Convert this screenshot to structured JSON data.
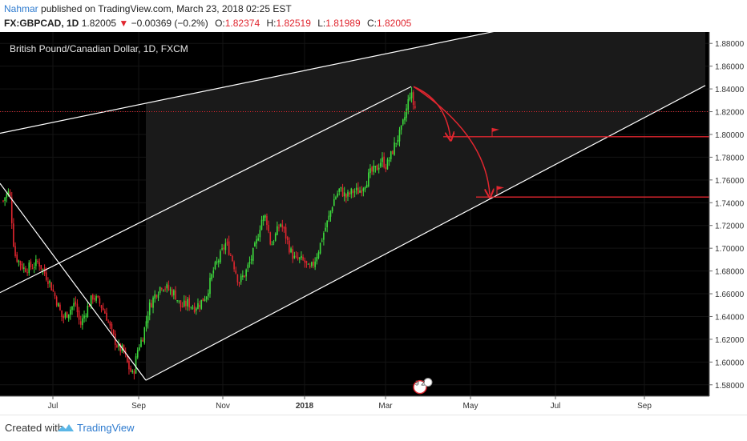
{
  "header": {
    "author": "Nahmar",
    "published_text": " published on TradingView.com, March 23, 2018 02:25 EST",
    "symbol": "FX:GBPCAD, 1D",
    "last": "1.82005",
    "change": "−0.00369 (−0.2%)",
    "o_label": "O:",
    "o_value": "1.82374",
    "h_label": "H:",
    "h_value": "1.82519",
    "l_label": "L:",
    "l_value": "1.81989",
    "c_label": "C:",
    "c_value": "1.82005",
    "down_arrow": "▼"
  },
  "footer": {
    "created_with": "Created with",
    "brand": "TradingView"
  },
  "colors": {
    "background": "#000000",
    "up_candle": "#3ddc3d",
    "down_candle": "#e0262f",
    "channel_line": "#ffffff",
    "price_line": "#e0262f",
    "axis_text": "#333333",
    "author": "#2e7bcf"
  },
  "chart_data": {
    "type": "candlestick",
    "title": "British Pound/Canadian Dollar, 1D, FXCM",
    "symbol": "GBPCAD",
    "ylim": [
      1.57,
      1.89
    ],
    "y_ticks": [
      "1.88000",
      "1.86000",
      "1.84000",
      "1.82000",
      "1.80000",
      "1.78000",
      "1.76000",
      "1.74000",
      "1.72000",
      "1.70000",
      "1.68000",
      "1.66000",
      "1.64000",
      "1.62000",
      "1.60000",
      "1.58000"
    ],
    "x_ticks": [
      "Jul",
      "Sep",
      "Nov",
      "2018",
      "Mar",
      "May",
      "Jul",
      "Sep"
    ],
    "price_labels": [
      {
        "value": 1.82005,
        "label": "1.82005",
        "style": "dotted"
      },
      {
        "value": 1.798,
        "label": "1.79800",
        "style": "solid"
      },
      {
        "value": 1.745,
        "label": "1.74500",
        "style": "solid"
      }
    ],
    "path_keypoints": [
      [
        0,
        1.735
      ],
      [
        6,
        1.745
      ],
      [
        12,
        1.75
      ],
      [
        18,
        1.695
      ],
      [
        24,
        1.688
      ],
      [
        30,
        1.682
      ],
      [
        40,
        1.684
      ],
      [
        48,
        1.688
      ],
      [
        55,
        1.679
      ],
      [
        62,
        1.67
      ],
      [
        70,
        1.655
      ],
      [
        78,
        1.638
      ],
      [
        86,
        1.645
      ],
      [
        94,
        1.652
      ],
      [
        100,
        1.632
      ],
      [
        108,
        1.646
      ],
      [
        116,
        1.658
      ],
      [
        124,
        1.652
      ],
      [
        132,
        1.642
      ],
      [
        140,
        1.624
      ],
      [
        148,
        1.612
      ],
      [
        154,
        1.61
      ],
      [
        160,
        1.596
      ],
      [
        166,
        1.588
      ],
      [
        172,
        1.612
      ],
      [
        178,
        1.622
      ],
      [
        186,
        1.648
      ],
      [
        194,
        1.66
      ],
      [
        202,
        1.668
      ],
      [
        210,
        1.664
      ],
      [
        218,
        1.66
      ],
      [
        226,
        1.648
      ],
      [
        234,
        1.652
      ],
      [
        242,
        1.648
      ],
      [
        250,
        1.652
      ],
      [
        258,
        1.66
      ],
      [
        266,
        1.68
      ],
      [
        274,
        1.692
      ],
      [
        282,
        1.705
      ],
      [
        290,
        1.69
      ],
      [
        298,
        1.67
      ],
      [
        306,
        1.678
      ],
      [
        314,
        1.692
      ],
      [
        320,
        1.705
      ],
      [
        326,
        1.725
      ],
      [
        332,
        1.728
      ],
      [
        338,
        1.702
      ],
      [
        344,
        1.712
      ],
      [
        350,
        1.722
      ],
      [
        356,
        1.712
      ],
      [
        362,
        1.698
      ],
      [
        368,
        1.69
      ],
      [
        374,
        1.69
      ],
      [
        380,
        1.688
      ],
      [
        386,
        1.68
      ],
      [
        392,
        1.688
      ],
      [
        398,
        1.7
      ],
      [
        404,
        1.714
      ],
      [
        410,
        1.726
      ],
      [
        416,
        1.742
      ],
      [
        424,
        1.752
      ],
      [
        432,
        1.745
      ],
      [
        440,
        1.75
      ],
      [
        448,
        1.75
      ],
      [
        456,
        1.758
      ],
      [
        462,
        1.766
      ],
      [
        470,
        1.77
      ],
      [
        476,
        1.778
      ],
      [
        482,
        1.772
      ],
      [
        488,
        1.782
      ],
      [
        494,
        1.794
      ],
      [
        500,
        1.802
      ],
      [
        506,
        1.818
      ],
      [
        512,
        1.838
      ],
      [
        516,
        1.826
      ],
      [
        520,
        1.82
      ]
    ],
    "channel_lines": [
      {
        "name": "channel-upper",
        "from": [
          0,
          1.801
        ],
        "to": [
          627,
          1.892
        ]
      },
      {
        "name": "channel-middle",
        "from": [
          0,
          1.661
        ],
        "to": [
          513,
          1.842
        ]
      },
      {
        "name": "channel-lower",
        "from": [
          182,
          1.584
        ],
        "to": [
          880,
          1.843
        ]
      },
      {
        "name": "descending-line",
        "from": [
          0,
          1.757
        ],
        "to": [
          182,
          1.584
        ]
      }
    ],
    "projection_arrows": [
      {
        "from": [
          516,
          1.842
        ],
        "ctrl": [
          556,
          1.83
        ],
        "to": [
          562,
          1.797
        ]
      },
      {
        "from": [
          516,
          1.842
        ],
        "ctrl": [
          606,
          1.8
        ],
        "to": [
          611,
          1.747
        ]
      }
    ],
    "annotations": [
      {
        "name": "event-flags",
        "x": 524,
        "y": 1.578,
        "text": "9 2"
      }
    ]
  }
}
